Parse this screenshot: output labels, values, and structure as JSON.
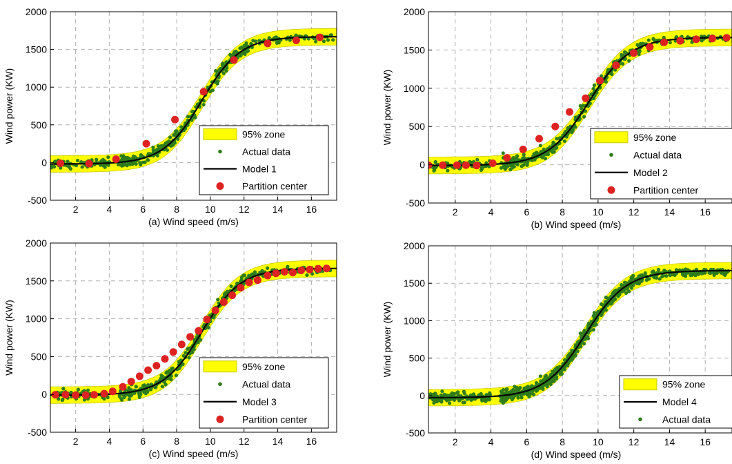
{
  "figure": {
    "colors": {
      "zone": "#ffff00",
      "zone_edge": "#c8c800",
      "data": "#2e7d1a",
      "model": "#000000",
      "center": "#dd2222",
      "grid": "#b0b0b0"
    }
  },
  "chart_data": [
    {
      "type": "scatter",
      "panel": "a",
      "xlabel": "(a) Wind speed (m/s)",
      "ylabel": "Wind power (KW)",
      "xlim": [
        0.5,
        17.5
      ],
      "ylim": [
        -500,
        2000
      ],
      "xticks": [
        2,
        4,
        6,
        8,
        10,
        12,
        14,
        16
      ],
      "yticks": [
        -500,
        0,
        500,
        1000,
        1500,
        2000
      ],
      "grid": true,
      "legend_position": "lower-right",
      "legend": [
        "95% zone",
        "Actual data",
        "Model 1",
        "Partition center"
      ],
      "curve": {
        "min": -20,
        "max": 1670,
        "midpoint": 9.5,
        "scale": 1.15
      },
      "zone_halfwidth": 110,
      "partition_centers": {
        "x": [
          1.1,
          2.8,
          4.4,
          6.2,
          7.9,
          9.6,
          11.4,
          13.4,
          15.1,
          16.5
        ],
        "y": [
          -10,
          -15,
          45,
          250,
          570,
          940,
          1360,
          1580,
          1620,
          1660
        ]
      },
      "series": [
        {
          "name": "95% zone"
        },
        {
          "name": "Actual data"
        },
        {
          "name": "Model 1"
        },
        {
          "name": "Partition center"
        }
      ]
    },
    {
      "type": "scatter",
      "panel": "b",
      "xlabel": "(b) Wind speed (m/s)",
      "ylabel": "Wind power (KW)",
      "xlim": [
        0.5,
        17.5
      ],
      "ylim": [
        -500,
        2000
      ],
      "xticks": [
        2,
        4,
        6,
        8,
        10,
        12,
        14,
        16
      ],
      "yticks": [
        -500,
        0,
        500,
        1000,
        1500,
        2000
      ],
      "grid": true,
      "legend_position": "lower-right",
      "legend": [
        "95% zone",
        "Actual data",
        "Model 2",
        "Partition center"
      ],
      "curve": {
        "min": -10,
        "max": 1665,
        "midpoint": 9.5,
        "scale": 1.15
      },
      "zone_halfwidth": 110,
      "partition_centers": {
        "x": [
          0.5,
          1.3,
          2.1,
          2.6,
          3.2,
          4.1,
          4.9,
          5.8,
          6.7,
          7.6,
          8.4,
          9.3,
          10.1,
          11.0,
          12.0,
          12.9,
          13.7,
          14.6,
          15.5,
          16.4,
          17.2
        ],
        "y": [
          -5,
          -5,
          -5,
          -5,
          -10,
          20,
          90,
          200,
          340,
          500,
          690,
          870,
          1100,
          1300,
          1460,
          1540,
          1600,
          1620,
          1640,
          1650,
          1660
        ]
      },
      "series": [
        {
          "name": "95% zone"
        },
        {
          "name": "Actual data"
        },
        {
          "name": "Model 2"
        },
        {
          "name": "Partition center"
        }
      ]
    },
    {
      "type": "scatter",
      "panel": "c",
      "xlabel": "(c) Wind speed (m/s)",
      "ylabel": "Wind power (KW)",
      "xlim": [
        0.5,
        17.5
      ],
      "ylim": [
        -500,
        2000
      ],
      "xticks": [
        2,
        4,
        6,
        8,
        10,
        12,
        14,
        16
      ],
      "yticks": [
        -500,
        0,
        500,
        1000,
        1500,
        2000
      ],
      "grid": true,
      "legend_position": "lower-right",
      "legend": [
        "95% zone",
        "Actual data",
        "Model 3",
        "Partition center"
      ],
      "curve": {
        "min": -10,
        "max": 1665,
        "midpoint": 9.5,
        "scale": 1.15
      },
      "zone_halfwidth": 110,
      "partition_centers": {
        "x": [
          0.8,
          1.4,
          2.0,
          2.6,
          3.1,
          3.7,
          4.2,
          4.8,
          5.3,
          5.8,
          6.3,
          6.8,
          7.3,
          7.8,
          8.3,
          8.8,
          9.3,
          9.8,
          10.3,
          10.8,
          11.3,
          11.8,
          12.3,
          12.8,
          13.4,
          13.9,
          14.4,
          14.9,
          15.4,
          15.9,
          16.4,
          16.9
        ],
        "y": [
          -5,
          -5,
          -10,
          -10,
          -5,
          10,
          40,
          100,
          170,
          240,
          320,
          380,
          470,
          560,
          660,
          760,
          840,
          990,
          1110,
          1220,
          1310,
          1410,
          1480,
          1510,
          1570,
          1600,
          1620,
          1610,
          1640,
          1650,
          1660,
          1665
        ]
      },
      "series": [
        {
          "name": "95% zone"
        },
        {
          "name": "Actual data"
        },
        {
          "name": "Model 3"
        },
        {
          "name": "Partition center"
        }
      ]
    },
    {
      "type": "scatter",
      "panel": "d",
      "xlabel": "(d) Wind speed (m/s)",
      "ylabel": "Wind power (KW)",
      "xlim": [
        0.5,
        17.5
      ],
      "ylim": [
        -500,
        2000
      ],
      "xticks": [
        2,
        4,
        6,
        8,
        10,
        12,
        14,
        16
      ],
      "yticks": [
        -500,
        0,
        500,
        1000,
        1500,
        2000
      ],
      "grid": true,
      "legend_position": "lower-right",
      "legend": [
        "95% zone",
        "Model 4",
        "Actual data"
      ],
      "curve": {
        "min": -30,
        "max": 1670,
        "midpoint": 9.3,
        "scale": 1.15
      },
      "zone_halfwidth": 110,
      "series": [
        {
          "name": "95% zone"
        },
        {
          "name": "Model 4"
        },
        {
          "name": "Actual data"
        }
      ]
    }
  ]
}
